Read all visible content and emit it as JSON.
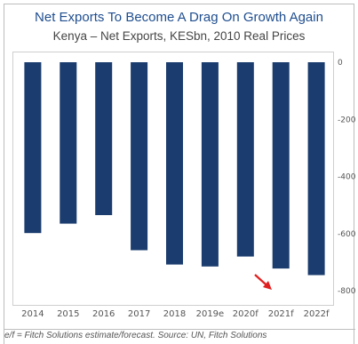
{
  "title": "Net Exports To Become A Drag On Growth Again",
  "subtitle": "Kenya – Net Exports, KESbn, 2010 Real Prices",
  "source": "e/f = Fitch Solutions estimate/forecast. Source: UN, Fitch Solutions",
  "colors": {
    "bar": "#1b3c6e",
    "arrow": "#e02020",
    "title": "#1f4e8f"
  },
  "chart_data": {
    "type": "bar",
    "categories": [
      "2014",
      "2015",
      "2016",
      "2017",
      "2018",
      "2019e",
      "2020f",
      "2021f",
      "2022f"
    ],
    "values": [
      -598,
      -565,
      -535,
      -658,
      -708,
      -715,
      -680,
      -722,
      -745
    ],
    "ylim": [
      -840,
      0
    ],
    "yticks": [
      0,
      -200,
      -400,
      -600,
      -800
    ],
    "ytick_labels": [
      "0",
      "-200",
      "-400",
      "-600",
      "-800"
    ],
    "annotation": "red arrow pointing down-right to the 2021f bar",
    "grid": false,
    "y_axis_side": "right"
  }
}
